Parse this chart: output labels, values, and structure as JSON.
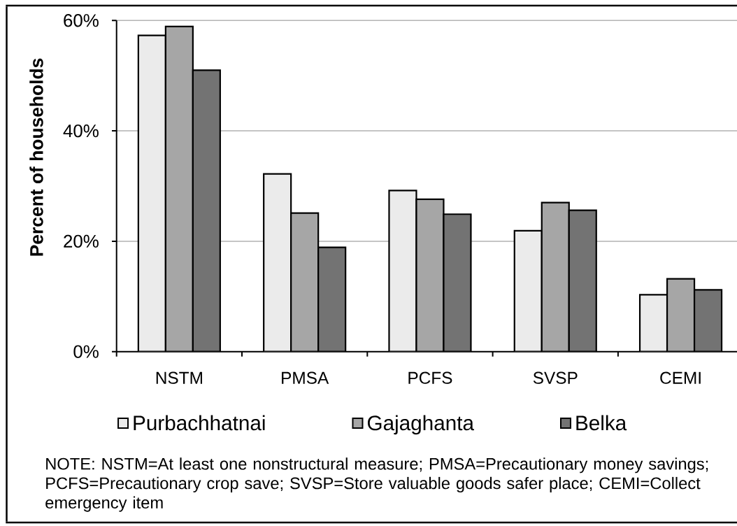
{
  "chart_data": {
    "type": "bar",
    "ylabel": "Percent of households",
    "categories": [
      "NSTM",
      "PMSA",
      "PCFS",
      "SVSP",
      "CEMI"
    ],
    "series": [
      {
        "name": "Purbachhatnai",
        "color": "#ebebeb",
        "values": [
          57.3,
          32.2,
          29.2,
          21.9,
          10.3
        ]
      },
      {
        "name": "Gajaghanta",
        "color": "#a6a6a6",
        "values": [
          58.9,
          25.1,
          27.6,
          27.0,
          13.2
        ]
      },
      {
        "name": "Belka",
        "color": "#737373",
        "values": [
          51.0,
          18.9,
          24.9,
          25.6,
          11.2
        ]
      }
    ],
    "ylim": [
      0,
      60
    ],
    "yticks": [
      {
        "value": 0,
        "label": "0%"
      },
      {
        "value": 20,
        "label": "20%"
      },
      {
        "value": 40,
        "label": "40%"
      },
      {
        "value": 60,
        "label": "60%"
      }
    ],
    "grid": "y",
    "legend": "bottom",
    "annotations": [
      "NOTE: NSTM=At least one nonstructural measure;  PMSA=Precautionary money savings;  PCFS=Precautionary crop save;  SVSP=Store valuable goods safer place; CEMI=Collect emergency item"
    ]
  }
}
